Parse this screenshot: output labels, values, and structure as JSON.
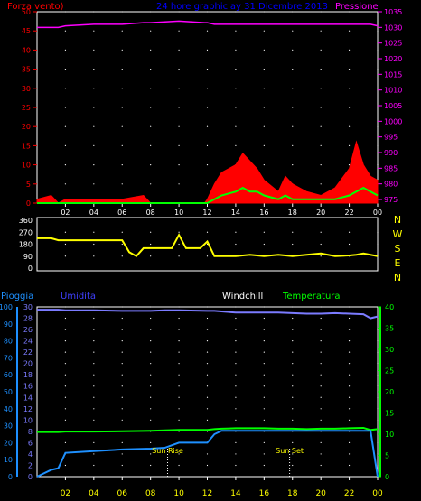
{
  "colors": {
    "background": "#000000",
    "frame": "#ffffff",
    "grid": "#ffffff",
    "wind_title": "#ff0000",
    "wind_fill": "#ff0000",
    "gust_line": "#00ff00",
    "pressure": "#ff00ff",
    "date_title": "#0000ff",
    "direction": "#ffff00",
    "rain_axis": "#1e90ff",
    "humidity": "#7b7bff",
    "humidity_label": "#4040ff",
    "rain_line": "#1e90ff",
    "windchill_label": "#ffffff",
    "temperature": "#00ff00",
    "sun_marker": "#ffff00"
  },
  "panels": {
    "top": {
      "wind_axis_title": "Forza vento)",
      "date_title": "24 hore graphiclay  31 Dicembre 2013",
      "pressure_axis_title": "Pressione",
      "wind_ticks": [
        "0",
        "5",
        "10",
        "15",
        "20",
        "25",
        "30",
        "35",
        "40",
        "45",
        "50"
      ],
      "pressure_ticks": [
        "975",
        "980",
        "985",
        "990",
        "995",
        "1000",
        "1005",
        "1010",
        "1015",
        "1020",
        "1025",
        "1030",
        "1035"
      ],
      "hour_ticks": [
        "02",
        "04",
        "06",
        "08",
        "10",
        "12",
        "14",
        "16",
        "18",
        "20",
        "22",
        "00"
      ]
    },
    "middle": {
      "degree_ticks": [
        "0",
        "90",
        "180",
        "270",
        "360"
      ],
      "compass": [
        "N",
        "W",
        "S",
        "E",
        "N"
      ],
      "hour_ticks": [
        "02",
        "04",
        "06",
        "08",
        "10",
        "12",
        "14",
        "16",
        "18",
        "20",
        "22",
        "00"
      ]
    },
    "bottom": {
      "rain_axis_title": "Pioggia",
      "humidity_title": "Umidita",
      "windchill_title": "Windchill",
      "temperature_title": "Temperatura",
      "rain_ticks": [
        "0",
        "10",
        "20",
        "30",
        "40",
        "50",
        "60",
        "70",
        "80",
        "90",
        "100"
      ],
      "humidity_ticks": [
        "0",
        "2",
        "4",
        "6",
        "8",
        "10",
        "12",
        "14",
        "16",
        "18",
        "20",
        "22",
        "24",
        "26",
        "28",
        "30"
      ],
      "temp_ticks": [
        "0",
        "5",
        "10",
        "15",
        "20",
        "25",
        "30",
        "35",
        "40"
      ],
      "hour_ticks": [
        "02",
        "04",
        "06",
        "08",
        "10",
        "12",
        "14",
        "16",
        "18",
        "20",
        "22",
        "00"
      ],
      "sunrise_label": "Sun Rise",
      "sunset_label": "Sun Set"
    }
  },
  "chart_data": [
    {
      "type": "area",
      "x_hours": [
        0.0,
        1.0,
        1.5,
        2.0,
        4.0,
        6.0,
        7.5,
        8.0,
        10.0,
        11.8,
        12.0,
        12.5,
        13.0,
        14.0,
        14.5,
        15.0,
        15.5,
        16.0,
        17.0,
        17.5,
        18.0,
        19.0,
        20.0,
        21.0,
        22.0,
        22.5,
        23.0,
        23.5,
        24.0
      ],
      "ylim": [
        0,
        50
      ],
      "series": [
        {
          "values": [
            1,
            2,
            0,
            1,
            1,
            1,
            2,
            0,
            0,
            0,
            1,
            5,
            8,
            10,
            13,
            11,
            9,
            6,
            3,
            7,
            5,
            3,
            2,
            4,
            9,
            16,
            10,
            7,
            6
          ]
        },
        {
          "values": [
            0,
            0,
            0,
            0,
            0,
            0,
            0,
            0,
            0,
            0,
            0,
            1,
            2,
            3,
            4,
            3,
            3,
            2,
            1,
            2,
            1,
            1,
            1,
            1,
            2,
            3,
            4,
            3,
            2
          ]
        },
        {
          "name": "Pressione",
          "ylim": [
            975,
            1035
          ],
          "values": [
            1030,
            1030,
            1030,
            1030.5,
            1031,
            1031,
            1031.5,
            1031.5,
            1032,
            1031.5,
            1031.5,
            1031,
            1031,
            1031,
            1031,
            1031,
            1031,
            1031,
            1031,
            1031,
            1031,
            1031,
            1031,
            1031,
            1031,
            1031,
            1031,
            1031,
            1030.5
          ]
        }
      ]
    },
    {
      "type": "line",
      "x_hours": [
        0.0,
        1.0,
        1.5,
        2.0,
        3.0,
        4.0,
        5.0,
        6.0,
        6.5,
        7.0,
        7.5,
        8.0,
        9.0,
        9.5,
        10.0,
        10.5,
        11.0,
        11.5,
        12.0,
        12.5,
        13.0,
        14.0,
        15.0,
        16.0,
        17.0,
        18.0,
        19.0,
        20.0,
        21.0,
        22.0,
        22.5,
        23.0,
        24.0
      ],
      "ylim": [
        0,
        360
      ],
      "series": [
        {
          "values": [
            225,
            225,
            210,
            210,
            210,
            210,
            210,
            210,
            120,
            90,
            150,
            150,
            150,
            150,
            250,
            150,
            150,
            150,
            200,
            90,
            90,
            90,
            100,
            90,
            100,
            90,
            100,
            110,
            90,
            95,
            100,
            110,
            90
          ]
        }
      ]
    },
    {
      "type": "line",
      "x_hours": [
        0.0,
        1.0,
        1.5,
        2.0,
        4.0,
        6.0,
        8.0,
        9.0,
        10.0,
        12.0,
        12.5,
        13.0,
        14.0,
        15.0,
        16.0,
        17.0,
        18.0,
        19.0,
        20.0,
        21.0,
        22.0,
        23.0,
        23.5,
        24.0
      ],
      "series": [
        {
          "name": "Umidita",
          "ylim": [
            0,
            30
          ],
          "values": [
            29.5,
            29.5,
            29.5,
            29.4,
            29.4,
            29.3,
            29.3,
            29.4,
            29.4,
            29.3,
            29.3,
            29.2,
            29.0,
            29.0,
            29.0,
            29.0,
            28.9,
            28.8,
            28.8,
            28.9,
            28.8,
            28.7,
            28.0,
            28.3
          ]
        },
        {
          "name": "Pioggia",
          "ylim": [
            0,
            100
          ],
          "values": [
            0,
            4,
            5,
            14,
            15,
            16,
            16.5,
            17,
            20,
            20,
            25,
            27,
            27,
            27,
            27,
            27,
            27,
            27,
            27,
            27,
            27,
            27,
            27,
            0
          ]
        },
        {
          "name": "Temperatura",
          "ylim": [
            0,
            40
          ],
          "values": [
            10.5,
            10.5,
            10.5,
            10.6,
            10.6,
            10.7,
            10.8,
            10.9,
            11,
            11,
            11.2,
            11.3,
            11.4,
            11.4,
            11.4,
            11.3,
            11.3,
            11.2,
            11.3,
            11.3,
            11.4,
            11.5,
            11.0,
            11.2
          ]
        }
      ],
      "annotations": [
        {
          "label": "Sun Rise",
          "x_hour": 9.2
        },
        {
          "label": "Sun Set",
          "x_hour": 17.8
        }
      ]
    }
  ]
}
